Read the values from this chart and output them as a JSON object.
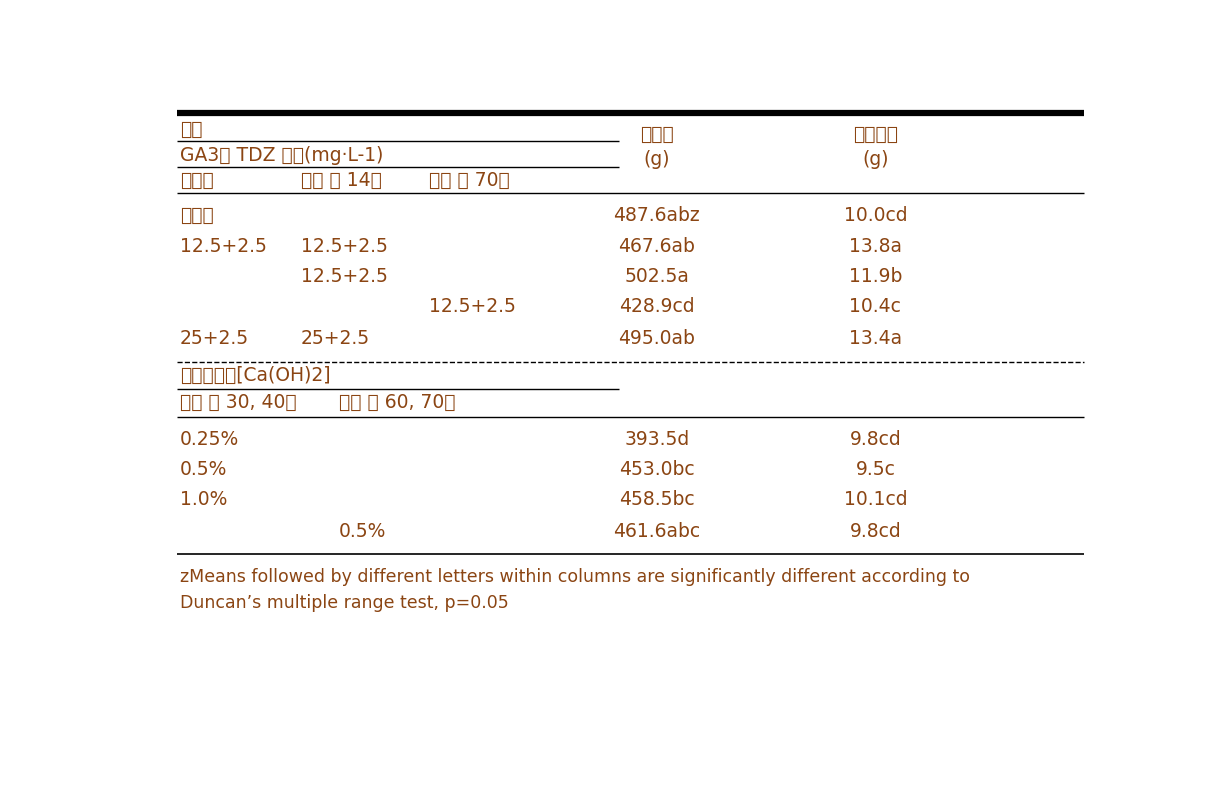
{
  "title_top": "처리",
  "header_ga3": "GA3및 TDZ 혼용(mg·L-1)",
  "header_col1": "만개기",
  "header_col2": "만개 후 14일",
  "header_col3": "만개 후 70일",
  "header_col4_line1": "과방중",
  "header_col4_line2": "(g)",
  "header_col5_line1": "과축무게",
  "header_col5_line2": "(g)",
  "section2_label": "수산화칼슘[Ca(OH)2]",
  "header2_col1": "만개 후 30, 40일",
  "header2_col2": "만개 후 60, 70일",
  "footnote_line1": "zMeans followed by different letters within columns are significantly different according to",
  "footnote_line2": "Duncan’s multiple range test, p=0.05",
  "rows_ga3": [
    [
      "무처리",
      "",
      "",
      "487.6abz",
      "10.0cd"
    ],
    [
      "12.5+2.5",
      "12.5+2.5",
      "",
      "467.6ab",
      "13.8a"
    ],
    [
      "",
      "12.5+2.5",
      "",
      "502.5a",
      "11.9b"
    ],
    [
      "",
      "",
      "12.5+2.5",
      "428.9cd",
      "10.4c"
    ],
    [
      "25+2.5",
      "25+2.5",
      "",
      "495.0ab",
      "13.4a"
    ]
  ],
  "rows_ca": [
    [
      "0.25%",
      "",
      "393.5d",
      "9.8cd"
    ],
    [
      "0.5%",
      "",
      "453.0bc",
      "9.5c"
    ],
    [
      "1.0%",
      "",
      "458.5bc",
      "10.1cd"
    ],
    [
      "",
      "0.5%",
      "461.6abc",
      "9.8cd"
    ]
  ],
  "text_color": "#8B4513",
  "border_color": "#000000",
  "background_color": "#ffffff",
  "font_size": 13.5
}
